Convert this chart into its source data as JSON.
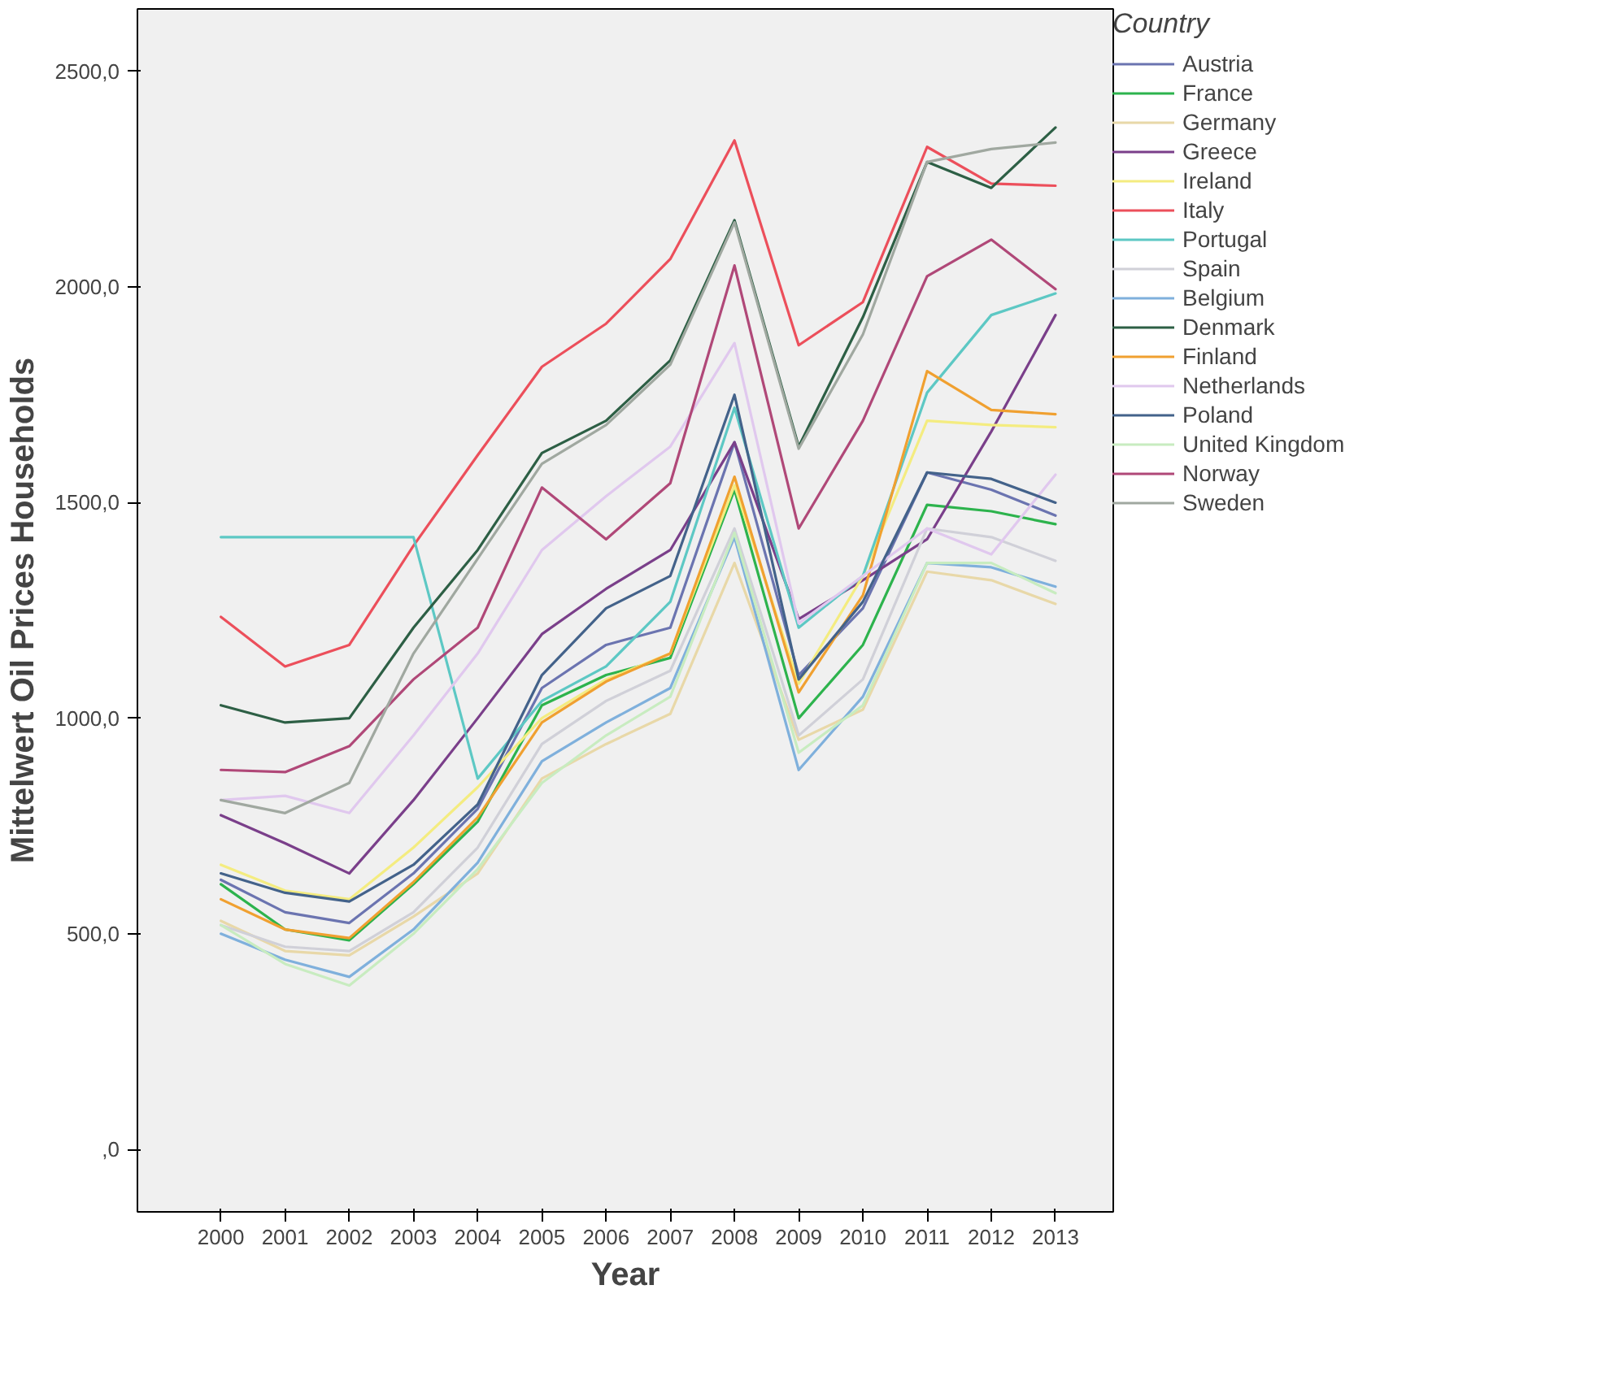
{
  "chart_data": {
    "type": "line",
    "xlabel": "Year",
    "ylabel": "Mittelwert Oil Prices Households",
    "legend_title": "Country",
    "legend": "right",
    "grid": false,
    "categories": [
      "2000",
      "2001",
      "2002",
      "2003",
      "2004",
      "2005",
      "2006",
      "2007",
      "2008",
      "2009",
      "2010",
      "2011",
      "2012",
      "2013"
    ],
    "ylim": [
      -145,
      2645
    ],
    "yticks": [
      {
        "value": 0,
        "label": ",0"
      },
      {
        "value": 500,
        "label": "500,0"
      },
      {
        "value": 1000,
        "label": "1000,0"
      },
      {
        "value": 1500,
        "label": "1500,0"
      },
      {
        "value": 2000,
        "label": "2000,0"
      },
      {
        "value": 2500,
        "label": "2500,0"
      }
    ],
    "series": [
      {
        "name": "Austria",
        "color": "#6b74b0",
        "values": [
          625,
          550,
          525,
          640,
          790,
          1070,
          1170,
          1210,
          1640,
          1100,
          1255,
          1570,
          1530,
          1470
        ]
      },
      {
        "name": "France",
        "color": "#2db34d",
        "values": [
          615,
          510,
          485,
          615,
          760,
          1030,
          1100,
          1140,
          1530,
          1000,
          1170,
          1495,
          1480,
          1450
        ]
      },
      {
        "name": "Germany",
        "color": "#e8d8a8",
        "values": [
          530,
          460,
          450,
          540,
          640,
          860,
          940,
          1010,
          1360,
          950,
          1020,
          1340,
          1320,
          1265
        ]
      },
      {
        "name": "Greece",
        "color": "#7a3f8a",
        "values": [
          775,
          710,
          640,
          810,
          1000,
          1195,
          1300,
          1390,
          1640,
          1230,
          1320,
          1415,
          1665,
          1935
        ]
      },
      {
        "name": "Ireland",
        "color": "#f4ec80",
        "values": [
          660,
          600,
          580,
          700,
          840,
          1000,
          1090,
          1150,
          1540,
          1080,
          1330,
          1690,
          1680,
          1675
        ]
      },
      {
        "name": "Italy",
        "color": "#ec4f5b",
        "values": [
          1235,
          1120,
          1170,
          1400,
          1610,
          1815,
          1915,
          2065,
          2340,
          1865,
          1965,
          2325,
          2240,
          2235
        ]
      },
      {
        "name": "Portugal",
        "color": "#5dc8c4",
        "values": [
          1420,
          1420,
          1420,
          1420,
          860,
          1040,
          1120,
          1270,
          1720,
          1210,
          1330,
          1755,
          1935,
          1985
        ]
      },
      {
        "name": "Spain",
        "color": "#d0d0d8",
        "values": [
          520,
          470,
          460,
          550,
          700,
          940,
          1040,
          1110,
          1440,
          960,
          1090,
          1440,
          1420,
          1365
        ]
      },
      {
        "name": "Belgium",
        "color": "#7fb0dc",
        "values": [
          500,
          440,
          400,
          510,
          665,
          900,
          990,
          1070,
          1420,
          880,
          1050,
          1360,
          1350,
          1305
        ]
      },
      {
        "name": "Denmark",
        "color": "#2d5f45",
        "values": [
          1030,
          990,
          1000,
          1210,
          1390,
          1615,
          1690,
          1830,
          2155,
          1630,
          1930,
          2290,
          2230,
          2370
        ]
      },
      {
        "name": "Finland",
        "color": "#f0a030",
        "values": [
          580,
          510,
          490,
          620,
          770,
          990,
          1085,
          1150,
          1560,
          1060,
          1285,
          1805,
          1715,
          1705
        ]
      },
      {
        "name": "Netherlands",
        "color": "#e0c8ee",
        "values": [
          810,
          820,
          780,
          960,
          1150,
          1390,
          1515,
          1630,
          1870,
          1220,
          1330,
          1440,
          1380,
          1565
        ]
      },
      {
        "name": "Poland",
        "color": "#43628a",
        "values": [
          640,
          595,
          575,
          660,
          800,
          1100,
          1255,
          1330,
          1750,
          1090,
          1270,
          1570,
          1555,
          1500
        ]
      },
      {
        "name": "United Kingdom",
        "color": "#c8ecc0",
        "values": [
          520,
          430,
          380,
          500,
          650,
          850,
          960,
          1050,
          1430,
          920,
          1030,
          1360,
          1360,
          1290
        ]
      },
      {
        "name": "Norway",
        "color": "#b04878",
        "values": [
          880,
          875,
          935,
          1090,
          1210,
          1535,
          1415,
          1545,
          2050,
          1440,
          1690,
          2025,
          2110,
          1995
        ]
      },
      {
        "name": "Sweden",
        "color": "#a0a8a0",
        "values": [
          810,
          780,
          850,
          1150,
          1370,
          1590,
          1680,
          1820,
          2150,
          1625,
          1890,
          2290,
          2320,
          2335
        ]
      }
    ]
  }
}
